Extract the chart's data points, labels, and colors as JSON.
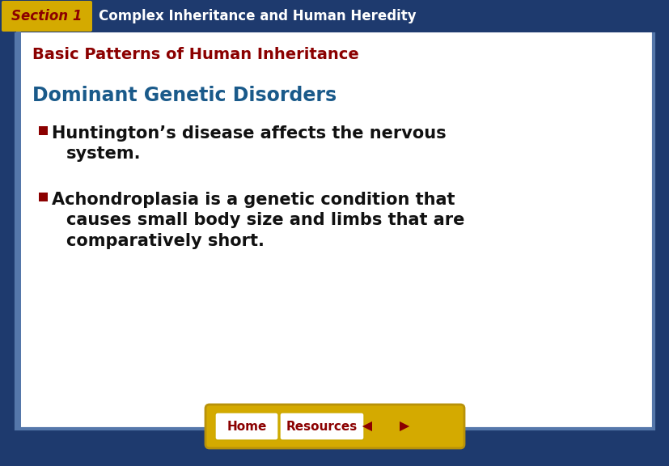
{
  "bg_color": "#1e3a6e",
  "section_label_bg": "#d4aa00",
  "section_label_text": "Section 1",
  "section_label_color": "#8b0000",
  "header_text": "Complex Inheritance and Human Heredity",
  "header_text_color": "#ffffff",
  "slide_bg": "#ffffff",
  "slide_border_color": "#5577aa",
  "subtitle_text": "Basic Patterns of Human Inheritance",
  "subtitle_color": "#8b0000",
  "topic_text": "Dominant Genetic Disorders",
  "topic_color": "#1a5a8a",
  "bullet1_line1": "Huntington’s disease affects the nervous",
  "bullet1_line2": "system.",
  "bullet2_line1": "Achondroplasia is a genetic condition that",
  "bullet2_line2": "causes small body size and limbs that are",
  "bullet2_line3": "comparatively short.",
  "bullet_color": "#111111",
  "bullet_marker_color": "#8b0000",
  "nav_bar_color": "#d4aa00",
  "nav_bar_border": "#b8920a",
  "home_btn_text": "Home",
  "resources_btn_text": "Resources",
  "btn_bg": "#ffffff",
  "btn_text_color": "#8b0000",
  "arrow_color": "#8b0000",
  "figw": 8.28,
  "figh": 5.76,
  "dpi": 100
}
